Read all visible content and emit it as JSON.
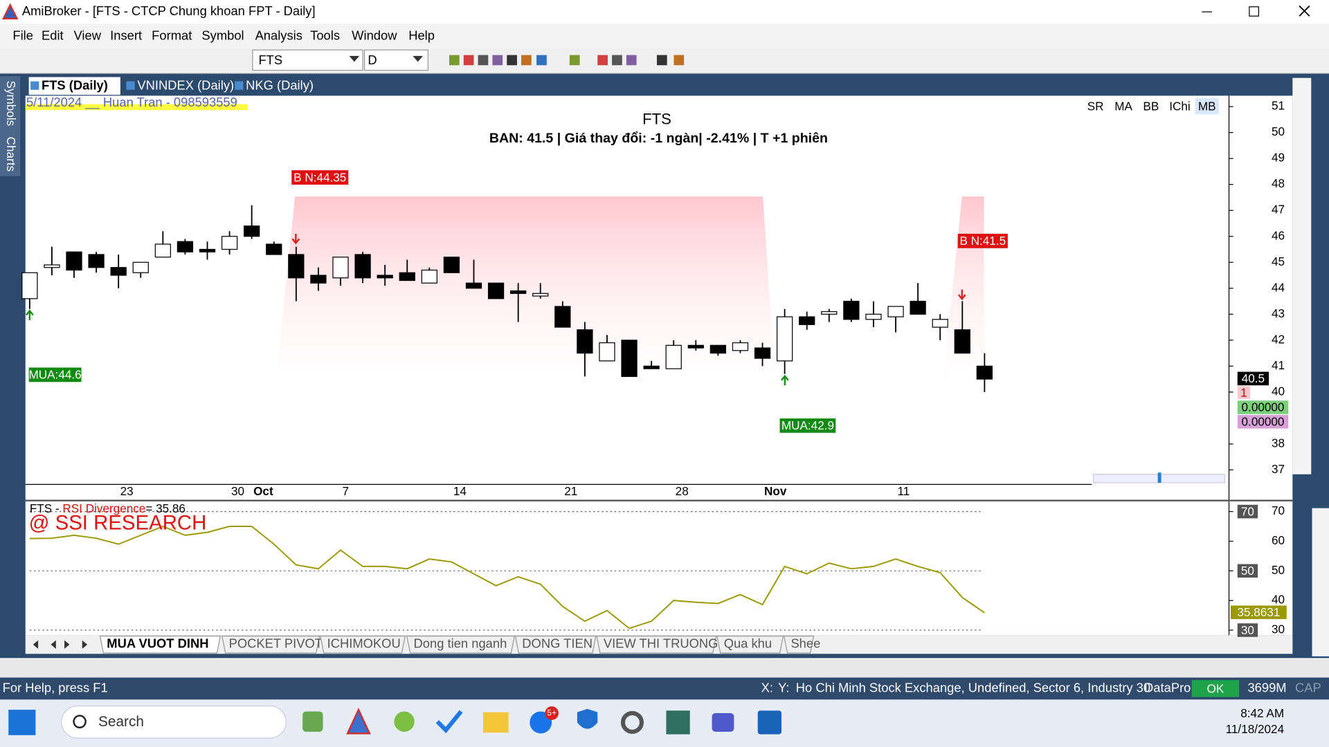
{
  "window": {
    "title": "AmiBroker - [FTS - CTCP Chung khoan FPT - Daily]"
  },
  "menu": [
    "File",
    "Edit",
    "View",
    "Insert",
    "Format",
    "Symbol",
    "Analysis",
    "Tools",
    "Window",
    "Help"
  ],
  "toolbar": {
    "symbol": "FTS",
    "interval": "D"
  },
  "chart_tabs": [
    "FTS (Daily)",
    "VNINDEX (Daily)",
    "NKG (Daily)"
  ],
  "side_tabs": [
    "Symbols",
    "Charts"
  ],
  "chart": {
    "type": "candlestick",
    "watermark": "5/11/2024 __ Huan Tran - 098593559",
    "title": "FTS",
    "subtitle": "BAN:  41.5 | Giá thay đổi: -1 ngàn| -2.41% | T +1 phiên",
    "buttons": [
      "SR",
      "MA",
      "BB",
      "IChi",
      "MB"
    ],
    "categories": [
      null,
      null,
      null,
      null,
      "23",
      null,
      null,
      null,
      null,
      "30",
      "Oct",
      null,
      null,
      null,
      "7",
      null,
      null,
      null,
      null,
      "14",
      null,
      null,
      null,
      null,
      "21",
      null,
      null,
      null,
      null,
      "28",
      null,
      null,
      null,
      "Nov",
      null,
      null,
      null,
      null,
      null,
      "11",
      null,
      null,
      null,
      null
    ],
    "open": [
      43.6,
      44.8,
      45.4,
      45.3,
      44.8,
      44.6,
      45.2,
      45.8,
      45.5,
      45.5,
      46.4,
      45.7,
      45.3,
      44.5,
      44.4,
      45.3,
      44.5,
      44.6,
      44.2,
      45.2,
      44.2,
      44.2,
      43.9,
      43.7,
      43.3,
      42.4,
      41.2,
      42.0,
      41.0,
      40.9,
      41.8,
      41.8,
      41.6,
      41.7,
      41.2,
      42.9,
      43.0,
      43.5,
      42.8,
      42.9,
      43.5,
      42.5,
      42.4,
      41.0
    ],
    "high": [
      44.6,
      45.6,
      45.4,
      45.4,
      45.3,
      45.0,
      46.2,
      45.9,
      45.8,
      46.2,
      47.2,
      45.8,
      45.6,
      44.8,
      45.2,
      45.4,
      44.9,
      45.1,
      44.8,
      45.2,
      45.1,
      44.2,
      44.2,
      44.2,
      43.5,
      42.7,
      42.2,
      42.0,
      41.2,
      42.0,
      42.0,
      41.8,
      42.0,
      41.9,
      43.2,
      43.1,
      43.2,
      43.6,
      43.5,
      43.3,
      44.2,
      43.0,
      43.5,
      41.5
    ],
    "low": [
      43.2,
      44.5,
      44.4,
      44.6,
      44.0,
      44.4,
      45.2,
      45.3,
      45.1,
      45.3,
      45.9,
      45.3,
      43.5,
      43.9,
      44.1,
      44.2,
      44.1,
      44.3,
      44.2,
      44.6,
      44.0,
      43.6,
      42.7,
      43.6,
      42.5,
      40.6,
      41.2,
      40.6,
      40.9,
      40.9,
      41.6,
      41.4,
      41.5,
      41.0,
      40.7,
      42.4,
      42.7,
      42.7,
      42.5,
      42.3,
      43.0,
      42.0,
      41.5,
      40.0
    ],
    "close": [
      44.6,
      44.9,
      44.7,
      44.8,
      44.5,
      45.0,
      45.7,
      45.4,
      45.4,
      46.0,
      46.0,
      45.3,
      44.4,
      44.2,
      45.2,
      44.4,
      44.4,
      44.3,
      44.7,
      44.6,
      44.0,
      43.6,
      43.8,
      43.8,
      42.5,
      41.5,
      41.9,
      40.6,
      40.9,
      41.8,
      41.7,
      41.5,
      41.9,
      41.3,
      42.9,
      42.6,
      43.1,
      42.8,
      43.0,
      43.3,
      43.0,
      42.8,
      41.5,
      40.5
    ],
    "up_color": "#ffffff",
    "down_color": "#000000",
    "ylim": [
      36.44,
      51.42
    ],
    "yticks": [
      51,
      50,
      49,
      48,
      47,
      46,
      45,
      44,
      43,
      42,
      41,
      40,
      38,
      37
    ],
    "signals": [
      "B N:44.35",
      "B N:41.5",
      "MUA:44.6",
      "MUA:42.9"
    ],
    "badges": [
      "40.5",
      "1",
      "0.00000",
      "0.00000"
    ]
  },
  "rsi": {
    "prefix": "FTS - ",
    "name": "RSI Divergence",
    "suffix": "= 35.86",
    "watermark": "@ SSI RESEARCH",
    "color": "#9a9a00",
    "values": [
      60.9,
      61,
      62,
      61,
      59,
      62,
      65,
      62,
      63,
      65,
      65,
      59,
      52,
      50.7,
      57,
      51.5,
      51.5,
      50.7,
      54,
      53,
      49,
      45,
      48,
      45.5,
      38,
      33,
      36.6,
      30.6,
      33,
      40,
      39.4,
      39,
      42,
      38.6,
      51.5,
      49,
      52.6,
      50.7,
      51.5,
      54,
      51.5,
      49.4,
      41,
      35.8631
    ],
    "ylim": [
      28.29,
      73.43
    ],
    "yticks": [
      70,
      60,
      50,
      40,
      30
    ],
    "levels": [
      70,
      50,
      30
    ],
    "last_label": "35.8631"
  },
  "sheet_tabs": [
    "MUA VUOT DINH",
    "POCKET PIVOT",
    "ICHIMOKOU",
    "Dong tien nganh",
    "DONG TIEN",
    "VIEW THI TRUONG",
    "Qua khu",
    "Shee"
  ],
  "status": {
    "help": "For Help, press F1",
    "x": "X:",
    "y": "Y:",
    "exchange": "Ho Chi Minh Stock Exchange, Undefined, Sector 6, Industry 30",
    "source": "DataPro",
    "state": "OK",
    "memory": "3699M",
    "cap": "CAP"
  },
  "taskbar": {
    "search": "Search",
    "badge": "5+",
    "time": "8:42 AM",
    "date": "11/18/2024"
  }
}
